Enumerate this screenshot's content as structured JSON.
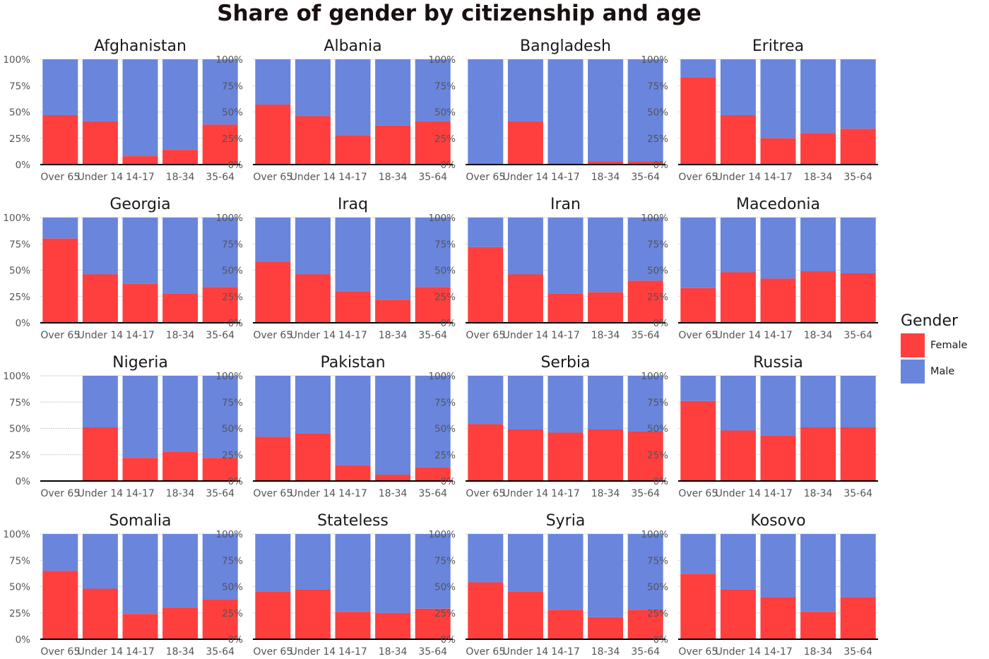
{
  "chart_data": {
    "type": "bar",
    "stacked": true,
    "title": "Share of gender by citizenship and age",
    "categories": [
      "Over 65",
      "Under 14",
      "14-17",
      "18-34",
      "35-64"
    ],
    "y_ticks": [
      "0%",
      "25%",
      "50%",
      "75%",
      "100%"
    ],
    "ylim": [
      0,
      100
    ],
    "grid": true,
    "legend": {
      "title": "Gender",
      "position": "right",
      "items": [
        {
          "name": "Female",
          "color": "#ff3e3e"
        },
        {
          "name": "Male",
          "color": "#6a85dc"
        }
      ]
    },
    "series_colors": {
      "female": "#ff3e3e",
      "male": "#6a85dc"
    },
    "panels": [
      {
        "title": "Afghanistan",
        "female": [
          47,
          41,
          8,
          14,
          38
        ]
      },
      {
        "title": "Albania",
        "female": [
          57,
          46,
          28,
          37,
          41
        ]
      },
      {
        "title": "Bangladesh",
        "female": [
          0,
          41,
          1,
          3,
          3
        ]
      },
      {
        "title": "Eritrea",
        "female": [
          83,
          47,
          25,
          30,
          34
        ]
      },
      {
        "title": "Georgia",
        "female": [
          80,
          46,
          37,
          28,
          34
        ]
      },
      {
        "title": "Iraq",
        "female": [
          58,
          46,
          30,
          22,
          34
        ]
      },
      {
        "title": "Iran",
        "female": [
          72,
          46,
          28,
          29,
          40
        ]
      },
      {
        "title": "Macedonia",
        "female": [
          33,
          48,
          42,
          49,
          47
        ]
      },
      {
        "title": "Nigeria",
        "female": [
          null,
          51,
          22,
          28,
          22
        ]
      },
      {
        "title": "Pakistan",
        "female": [
          42,
          45,
          15,
          6,
          13
        ]
      },
      {
        "title": "Serbia",
        "female": [
          54,
          49,
          46,
          49,
          47
        ]
      },
      {
        "title": "Russia",
        "female": [
          76,
          48,
          43,
          51,
          51
        ]
      },
      {
        "title": "Somalia",
        "female": [
          65,
          48,
          24,
          30,
          38
        ]
      },
      {
        "title": "Stateless",
        "female": [
          45,
          47,
          26,
          25,
          29
        ]
      },
      {
        "title": "Syria",
        "female": [
          54,
          45,
          28,
          21,
          28
        ]
      },
      {
        "title": "Kosovo",
        "female": [
          62,
          47,
          40,
          26,
          40
        ]
      }
    ]
  }
}
